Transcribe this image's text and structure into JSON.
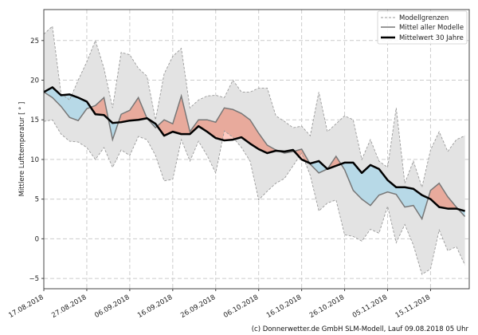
{
  "chart_data": {
    "type": "area",
    "title": "",
    "xlabel": "",
    "ylabel": "Mittlere Lufttemperatur [ ° ]",
    "ylim": [
      -6.3,
      28.9
    ],
    "xlim": [
      "17.08.2018",
      "24.11.2018"
    ],
    "yticks": [
      -5,
      0,
      5,
      10,
      15,
      20,
      25
    ],
    "xticks": [
      "17.08.2018",
      "27.08.2018",
      "06.09.2018",
      "16.09.2018",
      "26.09.2018",
      "06.10.2018",
      "16.10.2018",
      "26.10.2018",
      "05.11.2018",
      "15.11.2018"
    ],
    "grid": true,
    "legend_position": "top-right",
    "dates": [
      "17.08.2018",
      "19.08.2018",
      "21.08.2018",
      "23.08.2018",
      "25.08.2018",
      "27.08.2018",
      "29.08.2018",
      "31.08.2018",
      "02.09.2018",
      "04.09.2018",
      "06.09.2018",
      "08.09.2018",
      "10.09.2018",
      "12.09.2018",
      "14.09.2018",
      "16.09.2018",
      "18.09.2018",
      "20.09.2018",
      "22.09.2018",
      "24.09.2018",
      "26.09.2018",
      "28.09.2018",
      "30.09.2018",
      "02.10.2018",
      "04.10.2018",
      "06.10.2018",
      "08.10.2018",
      "10.10.2018",
      "12.10.2018",
      "14.10.2018",
      "16.10.2018",
      "18.10.2018",
      "20.10.2018",
      "22.10.2018",
      "24.10.2018",
      "26.10.2018",
      "28.10.2018",
      "30.10.2018",
      "01.11.2018",
      "03.11.2018",
      "05.11.2018",
      "07.11.2018",
      "09.11.2018",
      "11.11.2018",
      "13.11.2018",
      "15.11.2018",
      "17.11.2018",
      "19.11.2018",
      "21.11.2018",
      "23.11.2018"
    ],
    "series": [
      {
        "name": "Modellgrenzen",
        "role": "upper",
        "style": "dashed",
        "values": [
          25.8,
          26.8,
          18.3,
          17.5,
          20.0,
          22.3,
          25.0,
          21.5,
          16.5,
          23.5,
          23.2,
          21.5,
          20.5,
          15.0,
          20.8,
          23.0,
          24.0,
          16.5,
          17.5,
          18.0,
          18.1,
          17.8,
          20.0,
          18.5,
          18.5,
          19.0,
          19.0,
          15.5,
          14.8,
          14.0,
          14.2,
          13.0,
          18.5,
          13.5,
          14.5,
          15.5,
          15.0,
          10.0,
          12.5,
          9.8,
          9.0,
          16.5,
          7.0,
          9.8,
          6.5,
          11.2,
          13.5,
          11.0,
          12.5,
          13.0
        ]
      },
      {
        "name": "Modellgrenzen",
        "role": "lower",
        "style": "dashed",
        "values": [
          14.8,
          15.0,
          13.2,
          12.3,
          12.2,
          11.5,
          10.0,
          11.5,
          9.0,
          11.2,
          10.5,
          12.9,
          12.5,
          10.5,
          7.3,
          7.5,
          12.5,
          9.8,
          12.3,
          10.5,
          8.3,
          13.6,
          12.8,
          11.5,
          9.8,
          4.9,
          6.0,
          7.0,
          7.6,
          9.2,
          10.8,
          8.0,
          3.5,
          4.5,
          4.9,
          0.5,
          0.3,
          -0.3,
          1.2,
          0.7,
          4.1,
          -0.5,
          1.8,
          -0.8,
          -4.5,
          -3.8,
          1.1,
          -1.5,
          -1.0,
          -3.3
        ]
      },
      {
        "name": "Mittel aller Modelle",
        "role": "model_mean",
        "style": "solid",
        "values": [
          18.5,
          17.8,
          16.7,
          15.3,
          14.9,
          16.4,
          16.8,
          17.8,
          12.5,
          15.7,
          16.2,
          17.8,
          15.2,
          14.0,
          15.0,
          14.5,
          18.0,
          13.5,
          15.0,
          15.0,
          14.7,
          16.5,
          16.3,
          15.8,
          15.0,
          13.3,
          11.8,
          11.2,
          10.8,
          11.0,
          11.3,
          9.4,
          8.3,
          8.8,
          10.4,
          8.7,
          6.1,
          5.0,
          4.2,
          5.5,
          5.9,
          5.6,
          4.0,
          4.2,
          2.5,
          6.1,
          7.0,
          5.3,
          4.0,
          2.8
        ]
      },
      {
        "name": "Mittelwert 30 Jahre",
        "role": "climate_mean",
        "style": "thick",
        "values": [
          18.5,
          19.1,
          18.1,
          18.2,
          17.8,
          17.3,
          15.7,
          15.6,
          14.6,
          14.7,
          14.9,
          15.0,
          15.2,
          14.5,
          13.0,
          13.5,
          13.2,
          13.2,
          14.2,
          13.5,
          12.7,
          12.4,
          12.5,
          12.8,
          12.0,
          11.3,
          10.8,
          11.1,
          11.0,
          11.2,
          10.0,
          9.5,
          9.8,
          8.8,
          9.2,
          9.6,
          9.6,
          8.3,
          9.3,
          8.8,
          7.4,
          6.5,
          6.5,
          6.3,
          5.5,
          5.0,
          4.0,
          3.8,
          3.8,
          3.5
        ]
      }
    ],
    "colors": {
      "band_fill": "#e3e3e3",
      "band_line": "#9a9a9a",
      "model_mean_line": "#777777",
      "climate_mean_line": "#000000",
      "warmer_fill": "#e8aa9c",
      "warmer_all_fill": "#ffcbc2",
      "colder_fill": "#b7d9e7",
      "grid": "#cccccc"
    }
  },
  "legend": {
    "items": [
      {
        "label": "Modellgrenzen"
      },
      {
        "label": "Mittel aller Modelle"
      },
      {
        "label": "Mittelwert 30 Jahre"
      }
    ]
  },
  "credit": "(c) Donnerwetter.de GmbH SLM-Modell, Lauf 09.08.2018 05 Uhr"
}
